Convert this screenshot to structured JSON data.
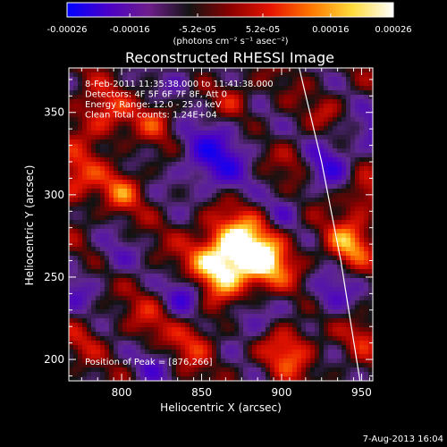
{
  "colorbar": {
    "ticks": [
      "-0.00026",
      "-0.00016",
      "-5.2e-05",
      "5.2e-05",
      "0.00016",
      "0.00026"
    ],
    "tick_values": [
      -0.00026,
      -0.00016,
      -5.2e-05,
      5.2e-05,
      0.00016,
      0.00026
    ],
    "range": [
      -0.00026,
      0.00026
    ],
    "units_label": "(photons cm⁻² s⁻¹ asec⁻²)",
    "colors": [
      "#0000ff",
      "#4b00c8",
      "#6e1e8c",
      "#141414",
      "#8c0000",
      "#e61400",
      "#ff7800",
      "#ffdc3c",
      "#ffffff"
    ]
  },
  "chart_data": {
    "type": "heatmap",
    "title": "Reconstructed RHESSI Image",
    "xlabel": "Heliocentric X (arcsec)",
    "ylabel": "Heliocentric Y (arcsec)",
    "xlim": [
      767,
      957
    ],
    "ylim": [
      187,
      377
    ],
    "x_ticks": [
      800,
      850,
      900,
      950
    ],
    "y_ticks": [
      200,
      250,
      300,
      350
    ],
    "x_tick_labels": [
      "800",
      "850",
      "900",
      "950"
    ],
    "y_tick_labels": [
      "200",
      "250",
      "300",
      "350"
    ],
    "value_range": [
      -0.00026,
      0.00026
    ],
    "peak": [
      876,
      266
    ],
    "annotations": [
      "8-Feb-2011 11:35:38.000 to 11:41:38.000",
      "Detectors: 4F 5F 6F 7F 8F, Att 0",
      "Energy Range: 12.0 - 25.0 keV",
      "Clean     Total counts: 1.24E+04"
    ],
    "peak_label": "Position of Peak = [876,266]",
    "limb_curve": [
      [
        911,
        377
      ],
      [
        925,
        320
      ],
      [
        937,
        260
      ],
      [
        949,
        187
      ]
    ]
  },
  "footer": {
    "date": "7-Aug-2013 16:04"
  }
}
